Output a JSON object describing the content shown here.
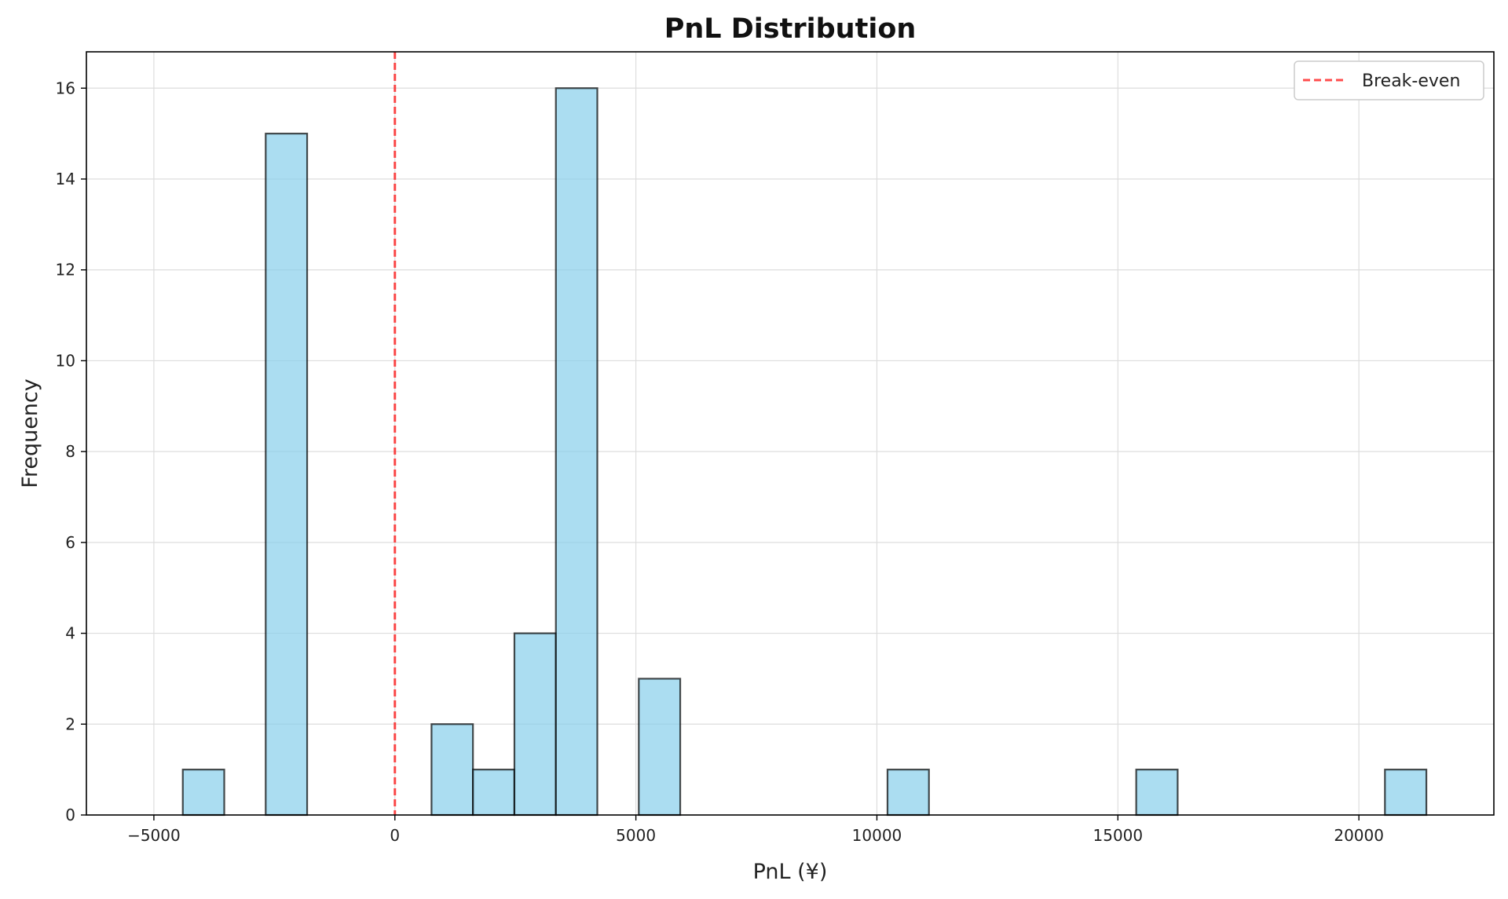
{
  "chart_data": {
    "type": "bar",
    "title": "PnL Distribution",
    "xlabel": "PnL (¥)",
    "ylabel": "Frequency",
    "xlim": [
      -6400,
      22800
    ],
    "ylim": [
      0,
      16.8
    ],
    "x_ticks": [
      {
        "value": -5000,
        "label": "−5000"
      },
      {
        "value": 0,
        "label": "0"
      },
      {
        "value": 5000,
        "label": "5000"
      },
      {
        "value": 10000,
        "label": "10000"
      },
      {
        "value": 15000,
        "label": "15000"
      },
      {
        "value": 20000,
        "label": "20000"
      }
    ],
    "y_ticks": [
      {
        "value": 0,
        "label": "0"
      },
      {
        "value": 2,
        "label": "2"
      },
      {
        "value": 4,
        "label": "4"
      },
      {
        "value": 6,
        "label": "6"
      },
      {
        "value": 8,
        "label": "8"
      },
      {
        "value": 10,
        "label": "10"
      },
      {
        "value": 12,
        "label": "12"
      },
      {
        "value": 14,
        "label": "14"
      },
      {
        "value": 16,
        "label": "16"
      }
    ],
    "bins": [
      {
        "x0": -4400,
        "x1": -3540,
        "count": 1
      },
      {
        "x0": -2680,
        "x1": -1820,
        "count": 15
      },
      {
        "x0": 760,
        "x1": 1620,
        "count": 2
      },
      {
        "x0": 1620,
        "x1": 2480,
        "count": 1
      },
      {
        "x0": 2480,
        "x1": 3340,
        "count": 4
      },
      {
        "x0": 3340,
        "x1": 4200,
        "count": 16
      },
      {
        "x0": 5060,
        "x1": 5920,
        "count": 3
      },
      {
        "x0": 10220,
        "x1": 11080,
        "count": 1
      },
      {
        "x0": 15380,
        "x1": 16240,
        "count": 1
      },
      {
        "x0": 20540,
        "x1": 21400,
        "count": 1
      }
    ],
    "break_even": 0,
    "legend": {
      "entries": [
        "Break-even"
      ],
      "placement": "top-right"
    },
    "grid": true,
    "colors": {
      "bar_fill": "#87CEEB",
      "bar_edge": "#000000",
      "break_even_line": "#ff0000"
    }
  }
}
